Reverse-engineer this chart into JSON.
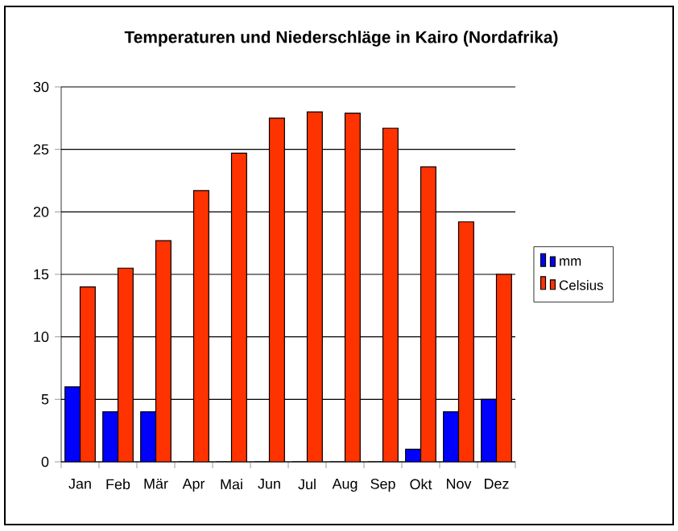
{
  "chart_data": {
    "type": "bar",
    "title": "**Temperaturen und Niederschläge in Kairo (Nordafrika)**",
    "categories": [
      "Jan",
      "Feb",
      "Mär",
      "Apr",
      "Mai",
      "Jun",
      "Jul",
      "Aug",
      "Sep",
      "Okt",
      "Nov",
      "Dez"
    ],
    "series": [
      {
        "name": "mm",
        "color": "#0000ff",
        "values": [
          6,
          4,
          4,
          0,
          0,
          0,
          0,
          0,
          0,
          1,
          4,
          5
        ]
      },
      {
        "name": "Celsius",
        "color": "#ff3300",
        "values": [
          14,
          15.5,
          17.7,
          21.7,
          24.7,
          27.5,
          28,
          27.9,
          26.7,
          23.6,
          19.2,
          15
        ]
      }
    ],
    "ylim": [
      0,
      30
    ],
    "yticks": [
      0,
      5,
      10,
      15,
      20,
      25,
      30
    ],
    "grid": "y",
    "legend": "right"
  }
}
